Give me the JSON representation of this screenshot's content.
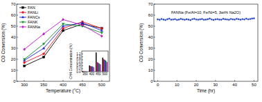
{
  "chart_data": [
    {
      "type": "line",
      "x_label": "Temperature (°C)",
      "y_label": "CO Conversion (%)",
      "x": [
        300,
        350,
        400,
        450,
        500
      ],
      "xlim": [
        280,
        520
      ],
      "xticks": [
        300,
        350,
        400,
        450,
        500
      ],
      "ylim": [
        0,
        70
      ],
      "yticks": [
        0,
        10,
        20,
        30,
        40,
        50,
        60,
        70
      ],
      "legend": "upper left",
      "series": [
        {
          "name": "FAN",
          "color": "#000000",
          "marker": "square",
          "values": [
            14,
            22,
            46,
            52,
            48
          ]
        },
        {
          "name": "FANLi",
          "color": "#e8141c",
          "marker": "circle",
          "values": [
            17,
            25,
            48,
            54,
            48
          ]
        },
        {
          "name": "FANCs",
          "color": "#1a1ae0",
          "marker": "triangle",
          "values": [
            19,
            30,
            50,
            53,
            46
          ]
        },
        {
          "name": "FANK",
          "color": "#0a8a2a",
          "marker": "triangle-down",
          "values": [
            20,
            34,
            52,
            50,
            44
          ]
        },
        {
          "name": "FANNa",
          "color": "#c010c0",
          "marker": "diamond",
          "values": [
            29,
            43,
            56,
            51,
            41
          ]
        }
      ]
    },
    {
      "type": "bar",
      "y_label": "CH4 Concentration (%)",
      "categories": [
        "350",
        "400",
        "450",
        "500"
      ],
      "ylim": [
        0,
        1.4
      ],
      "yticks": [
        {
          "value": 0,
          "label": "0.0"
        },
        0.2,
        0.4,
        0.6,
        0.8,
        {
          "value": 1,
          "label": "1.0"
        },
        1.2
      ],
      "series": [
        {
          "name": "FAN",
          "color": "#000000",
          "values": [
            0.05,
            0.42,
            1.3,
            0.95
          ]
        },
        {
          "name": "FANLi",
          "color": "#e8141c",
          "values": [
            0.04,
            0.38,
            0.65,
            0.85
          ]
        },
        {
          "name": "FANCs",
          "color": "#1a1ae0",
          "values": [
            0.03,
            0.36,
            0.6,
            0.8
          ]
        },
        {
          "name": "FANK",
          "color": "#0a8a2a",
          "values": [
            0.03,
            0.35,
            0.55,
            0.75
          ]
        },
        {
          "name": "FANNa",
          "color": "#c010c0",
          "values": [
            0.02,
            0.3,
            0.5,
            0.65
          ]
        }
      ]
    },
    {
      "type": "scatter",
      "x_label": "Time (hr)",
      "y_label": "CO Conversion (%)",
      "annotation": "FANNa (Fe/Al=10, Fe/Ni=5, 3wt% Na2O)",
      "color": "#1f3fbf",
      "marker": "circle",
      "xlim": [
        -2,
        52
      ],
      "xticks": [
        0,
        10,
        20,
        30,
        40,
        50
      ],
      "ylim": [
        0,
        70
      ],
      "yticks": [
        0,
        10,
        20,
        30,
        40,
        50,
        60,
        70
      ],
      "x": [
        0,
        1,
        2,
        3,
        4,
        5,
        6,
        7,
        8,
        9,
        10,
        11,
        12,
        13,
        14,
        15,
        16,
        17,
        18,
        19,
        20,
        21,
        22,
        23,
        24,
        25,
        26,
        27,
        28,
        29,
        30,
        31,
        32,
        33,
        34,
        35,
        36,
        37,
        38,
        39,
        40,
        41,
        42,
        43,
        44,
        45,
        46,
        47,
        48,
        49,
        50
      ],
      "values": [
        56.2,
        55.8,
        56.5,
        56.0,
        55.6,
        56.3,
        56.8,
        55.9,
        56.1,
        56.4,
        55.7,
        56.0,
        56.6,
        56.2,
        55.8,
        56.3,
        56.0,
        55.5,
        56.4,
        56.7,
        56.1,
        55.9,
        56.2,
        56.5,
        55.8,
        56.0,
        56.3,
        56.9,
        56.1,
        55.7,
        56.2,
        56.4,
        56.0,
        55.9,
        56.6,
        56.3,
        56.1,
        55.8,
        56.5,
        56.2,
        56.0,
        56.7,
        56.3,
        55.9,
        56.4,
        56.1,
        56.8,
        56.2,
        56.5,
        56.9,
        57.1
      ]
    }
  ]
}
